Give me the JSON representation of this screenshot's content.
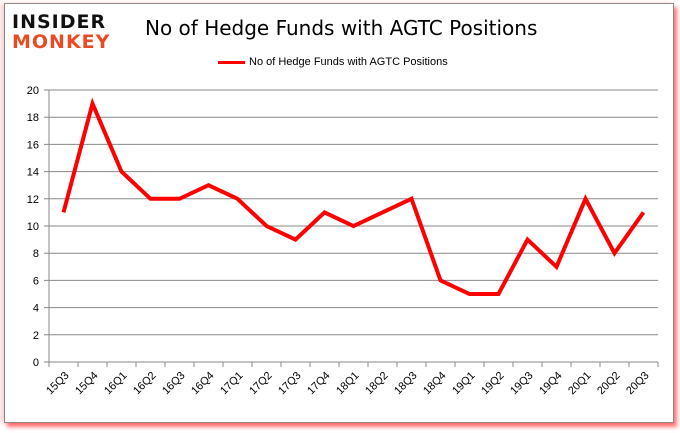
{
  "logo": {
    "line1": "INSIDER",
    "line2": "MONKEY"
  },
  "chart_data": {
    "type": "line",
    "title": "No of Hedge Funds with AGTC Positions",
    "xlabel": "",
    "ylabel": "",
    "ylim": [
      0,
      20
    ],
    "yticks": [
      0,
      2,
      4,
      6,
      8,
      10,
      12,
      14,
      16,
      18,
      20
    ],
    "grid": true,
    "legend_position": "top",
    "categories": [
      "15Q3",
      "15Q4",
      "16Q1",
      "16Q2",
      "16Q3",
      "16Q4",
      "17Q1",
      "17Q2",
      "17Q3",
      "17Q4",
      "18Q1",
      "18Q2",
      "18Q3",
      "18Q4",
      "19Q1",
      "19Q2",
      "19Q3",
      "19Q4",
      "20Q1",
      "20Q2",
      "20Q3"
    ],
    "series": [
      {
        "name": "No of Hedge Funds with AGTC Positions",
        "color": "#ff0000",
        "values": [
          11,
          19,
          14,
          12,
          12,
          13,
          12,
          10,
          9,
          11,
          10,
          11,
          12,
          6,
          5,
          5,
          9,
          7,
          12,
          8,
          11
        ]
      }
    ]
  }
}
